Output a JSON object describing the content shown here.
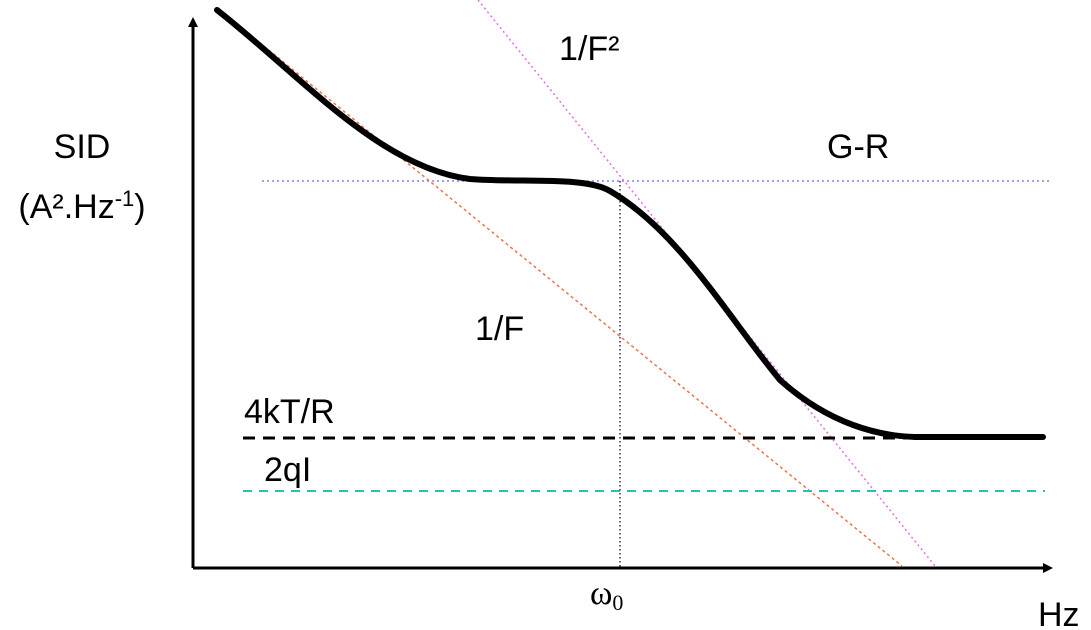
{
  "axes": {
    "y_label_line1": "SID",
    "y_label_line2_base": "(A².Hz",
    "y_label_line2_sup": "-1",
    "y_label_line2_end": ")",
    "x_label": "Hz"
  },
  "labels": {
    "one_over_f_squared": "1/F²",
    "g_r": "G-R",
    "one_over_f": "1/F",
    "thermal": "4kT/R",
    "shot": "2qI",
    "omega_symbol": "ω",
    "omega_subscript": "0"
  },
  "colors": {
    "axes": "#000000",
    "total_curve": "#000000",
    "one_over_f_line": "#f07050",
    "one_over_f_squared_line": "#e070e8",
    "g_r_line": "#8080e0",
    "thermal_line": "#000000",
    "shot_line": "#30c0b0",
    "omega_marker": "#000000"
  }
}
